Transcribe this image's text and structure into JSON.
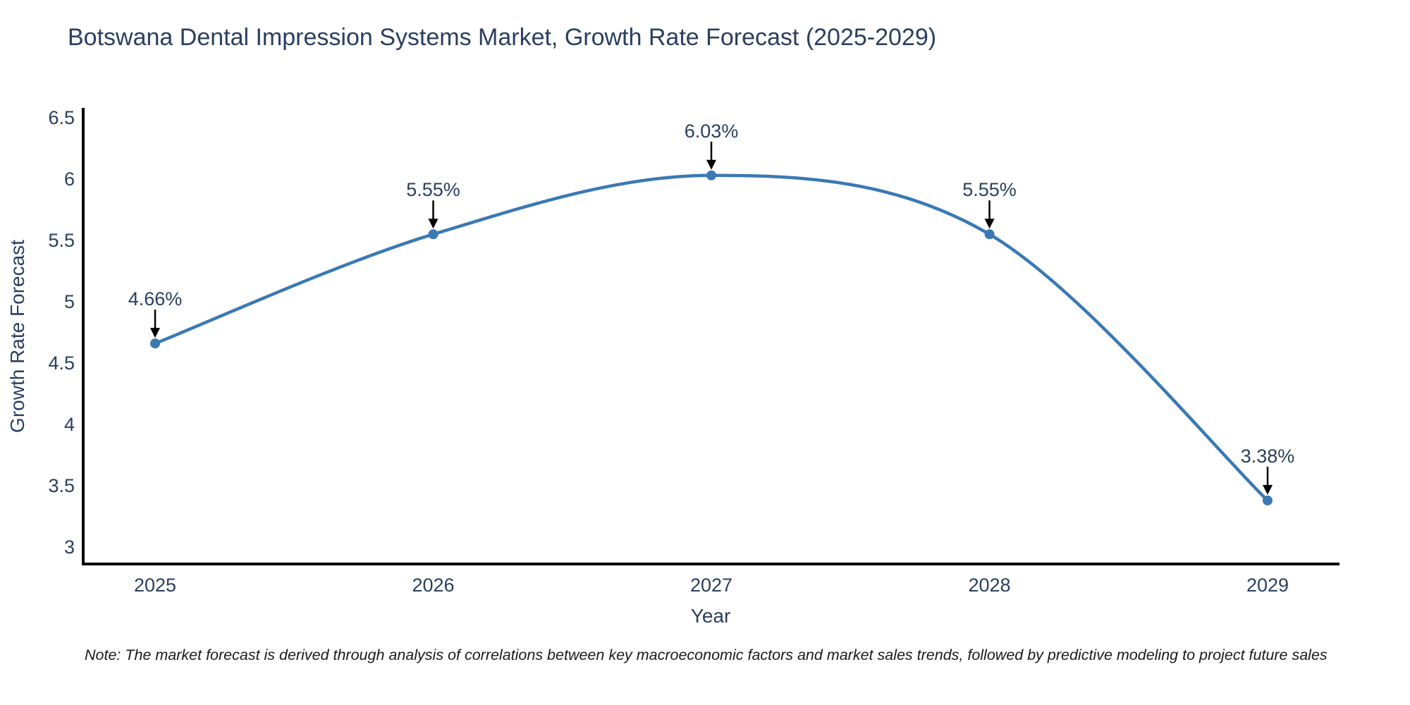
{
  "chart_data": {
    "type": "line",
    "title": "Botswana Dental Impression Systems Market, Growth Rate Forecast (2025-2029)",
    "xlabel": "Year",
    "ylabel": "Growth Rate Forecast",
    "categories": [
      "2025",
      "2026",
      "2027",
      "2028",
      "2029"
    ],
    "series": [
      {
        "name": "Growth Rate Forecast",
        "values": [
          4.66,
          5.55,
          6.03,
          5.55,
          3.38
        ],
        "point_labels": [
          "4.66%",
          "5.55%",
          "6.03%",
          "5.55%",
          "3.38%"
        ]
      }
    ],
    "y_ticks": [
      6.5,
      6,
      5.5,
      5,
      4.5,
      4,
      3.5,
      3
    ],
    "ylim": [
      2.85,
      6.58
    ],
    "line_shape": "spline",
    "grid": false,
    "legend_position": "none",
    "colors": {
      "line": "#3a79b4",
      "marker": "#3a79b4",
      "axis": "#000000",
      "text": "#2a3f5f",
      "annotation_arrow": "#000000"
    },
    "note": "Note: The market forecast is derived through analysis of correlations between key macroeconomic factors and market sales trends, followed by predictive modeling to project future sales"
  }
}
